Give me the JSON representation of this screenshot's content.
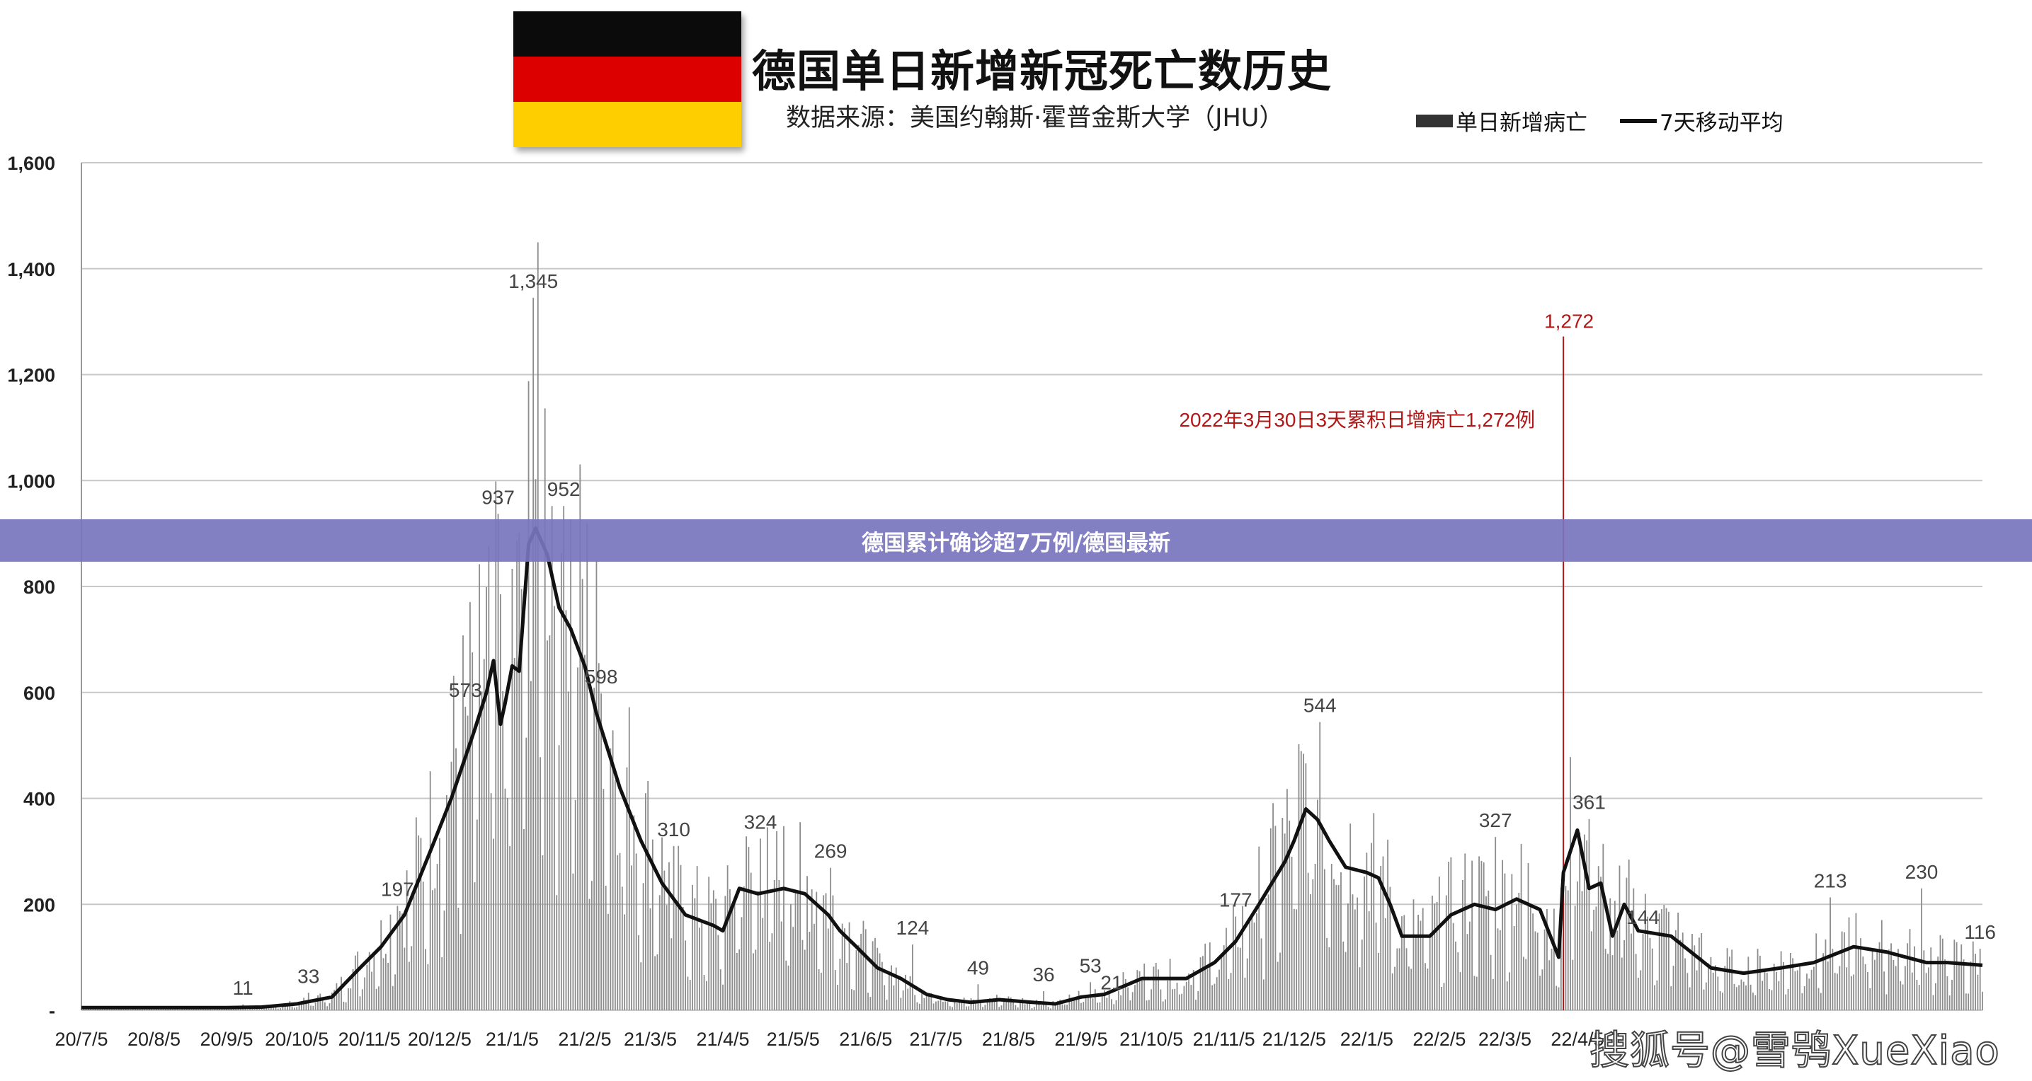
{
  "header": {
    "title": "德国单日新增新冠死亡数历史",
    "subtitle": "数据来源：美国约翰斯·霍普金斯大学（JHU）",
    "flag_colors": [
      "#0b0b0b",
      "#dd0000",
      "#ffce00"
    ]
  },
  "legend": {
    "bar_label": "单日新增病亡",
    "line_label": "7天移动平均"
  },
  "banner": {
    "text": "德国累计确诊超7万例/德国最新"
  },
  "watermark": {
    "text": "搜狐号@雪鸮XueXiao"
  },
  "colors": {
    "bar": "#8c8c8c",
    "line": "#111111",
    "annotation": "#b01818",
    "grid": "#c8c8c8",
    "banner": "#7874be"
  },
  "chart_data": {
    "type": "bar",
    "title": "德国单日新增新冠死亡数历史",
    "ylim": [
      0,
      1600
    ],
    "yticks": [
      0,
      200,
      400,
      600,
      800,
      1000,
      1200,
      1400,
      1600
    ],
    "ytick_labels": [
      "-",
      "200",
      "400",
      "600",
      "800",
      "1,000",
      "1,200",
      "1,400",
      "1,600"
    ],
    "x_start": "2020-07-05",
    "x_end": "2022-09-25",
    "xtick_labels": [
      "20/7/5",
      "20/8/5",
      "20/9/5",
      "20/10/5",
      "20/11/5",
      "20/12/5",
      "21/1/5",
      "21/2/5",
      "21/3/5",
      "21/4/5",
      "21/5/5",
      "21/6/5",
      "21/7/5",
      "21/8/5",
      "21/9/5",
      "21/10/5",
      "21/11/5",
      "21/12/5",
      "22/1/5",
      "22/2/5",
      "22/3/5",
      "22/4/5"
    ],
    "xtick_dates": [
      "2020-07-05",
      "2020-08-05",
      "2020-09-05",
      "2020-10-05",
      "2020-11-05",
      "2020-12-05",
      "2021-01-05",
      "2021-02-05",
      "2021-03-05",
      "2021-04-05",
      "2021-05-05",
      "2021-06-05",
      "2021-07-05",
      "2021-08-05",
      "2021-09-05",
      "2021-10-05",
      "2021-11-05",
      "2021-12-05",
      "2022-01-05",
      "2022-02-05",
      "2022-03-05",
      "2022-04-05"
    ],
    "grid": true,
    "legend_position": "top-right",
    "series": [
      {
        "name": "7天移动平均",
        "type": "line",
        "points": [
          [
            "2020-07-05",
            5
          ],
          [
            "2020-08-05",
            5
          ],
          [
            "2020-09-05",
            5
          ],
          [
            "2020-09-20",
            6
          ],
          [
            "2020-10-05",
            12
          ],
          [
            "2020-10-20",
            25
          ],
          [
            "2020-11-01",
            80
          ],
          [
            "2020-11-10",
            120
          ],
          [
            "2020-11-20",
            180
          ],
          [
            "2020-12-01",
            300
          ],
          [
            "2020-12-10",
            400
          ],
          [
            "2020-12-20",
            530
          ],
          [
            "2020-12-25",
            600
          ],
          [
            "2020-12-28",
            660
          ],
          [
            "2020-12-31",
            540
          ],
          [
            "2021-01-02",
            580
          ],
          [
            "2021-01-05",
            650
          ],
          [
            "2021-01-08",
            640
          ],
          [
            "2021-01-12",
            880
          ],
          [
            "2021-01-15",
            910
          ],
          [
            "2021-01-20",
            860
          ],
          [
            "2021-01-25",
            760
          ],
          [
            "2021-01-30",
            720
          ],
          [
            "2021-02-05",
            650
          ],
          [
            "2021-02-10",
            560
          ],
          [
            "2021-02-20",
            420
          ],
          [
            "2021-03-01",
            320
          ],
          [
            "2021-03-10",
            240
          ],
          [
            "2021-03-20",
            180
          ],
          [
            "2021-04-01",
            160
          ],
          [
            "2021-04-05",
            150
          ],
          [
            "2021-04-12",
            230
          ],
          [
            "2021-04-20",
            220
          ],
          [
            "2021-05-01",
            230
          ],
          [
            "2021-05-10",
            220
          ],
          [
            "2021-05-20",
            180
          ],
          [
            "2021-05-25",
            150
          ],
          [
            "2021-06-01",
            120
          ],
          [
            "2021-06-10",
            80
          ],
          [
            "2021-06-20",
            60
          ],
          [
            "2021-07-01",
            30
          ],
          [
            "2021-07-10",
            20
          ],
          [
            "2021-07-20",
            15
          ],
          [
            "2021-08-01",
            20
          ],
          [
            "2021-08-15",
            15
          ],
          [
            "2021-08-25",
            12
          ],
          [
            "2021-09-05",
            25
          ],
          [
            "2021-09-15",
            30
          ],
          [
            "2021-10-01",
            60
          ],
          [
            "2021-10-10",
            60
          ],
          [
            "2021-10-20",
            60
          ],
          [
            "2021-11-01",
            90
          ],
          [
            "2021-11-10",
            130
          ],
          [
            "2021-11-20",
            200
          ],
          [
            "2021-12-01",
            280
          ],
          [
            "2021-12-05",
            320
          ],
          [
            "2021-12-10",
            380
          ],
          [
            "2021-12-15",
            360
          ],
          [
            "2021-12-20",
            320
          ],
          [
            "2021-12-27",
            270
          ],
          [
            "2022-01-05",
            260
          ],
          [
            "2022-01-10",
            250
          ],
          [
            "2022-01-15",
            200
          ],
          [
            "2022-01-20",
            140
          ],
          [
            "2022-02-01",
            140
          ],
          [
            "2022-02-10",
            180
          ],
          [
            "2022-02-20",
            200
          ],
          [
            "2022-03-01",
            190
          ],
          [
            "2022-03-10",
            210
          ],
          [
            "2022-03-20",
            190
          ],
          [
            "2022-03-28",
            100
          ],
          [
            "2022-03-30",
            260
          ],
          [
            "2022-04-05",
            340
          ],
          [
            "2022-04-10",
            230
          ],
          [
            "2022-04-15",
            240
          ],
          [
            "2022-04-20",
            140
          ],
          [
            "2022-04-25",
            200
          ],
          [
            "2022-05-01",
            150
          ],
          [
            "2022-05-15",
            140
          ],
          [
            "2022-06-01",
            80
          ],
          [
            "2022-06-15",
            70
          ],
          [
            "2022-07-01",
            80
          ],
          [
            "2022-07-15",
            90
          ],
          [
            "2022-08-01",
            120
          ],
          [
            "2022-08-15",
            110
          ],
          [
            "2022-09-01",
            90
          ],
          [
            "2022-09-10",
            90
          ],
          [
            "2022-09-25",
            85
          ]
        ]
      }
    ],
    "data_labels": [
      {
        "date": "2020-09-12",
        "value": 11,
        "label": "11"
      },
      {
        "date": "2020-10-10",
        "value": 33,
        "label": "33"
      },
      {
        "date": "2020-11-17",
        "value": 197,
        "label": "197"
      },
      {
        "date": "2020-12-16",
        "value": 573,
        "label": "573"
      },
      {
        "date": "2020-12-30",
        "value": 937,
        "label": "937"
      },
      {
        "date": "2021-01-14",
        "value": 1345,
        "label": "1,345"
      },
      {
        "date": "2021-01-27",
        "value": 952,
        "label": "952"
      },
      {
        "date": "2021-02-12",
        "value": 598,
        "label": "598"
      },
      {
        "date": "2021-03-15",
        "value": 310,
        "label": "310"
      },
      {
        "date": "2021-04-21",
        "value": 324,
        "label": "324"
      },
      {
        "date": "2021-05-21",
        "value": 269,
        "label": "269"
      },
      {
        "date": "2021-06-25",
        "value": 124,
        "label": "124"
      },
      {
        "date": "2021-07-23",
        "value": 49,
        "label": "49"
      },
      {
        "date": "2021-08-20",
        "value": 36,
        "label": "36"
      },
      {
        "date": "2021-09-09",
        "value": 53,
        "label": "53"
      },
      {
        "date": "2021-09-18",
        "value": 21,
        "label": "21"
      },
      {
        "date": "2021-11-10",
        "value": 177,
        "label": "177"
      },
      {
        "date": "2021-12-16",
        "value": 544,
        "label": "544"
      },
      {
        "date": "2022-03-01",
        "value": 327,
        "label": "327"
      },
      {
        "date": "2022-04-10",
        "value": 361,
        "label": "361"
      },
      {
        "date": "2022-05-03",
        "value": 144,
        "label": "144"
      },
      {
        "date": "2022-07-22",
        "value": 213,
        "label": "213"
      },
      {
        "date": "2022-08-30",
        "value": 230,
        "label": "230"
      },
      {
        "date": "2022-09-24",
        "value": 116,
        "label": "116"
      }
    ],
    "annotations": [
      {
        "date": "2022-03-30",
        "value": 1272,
        "label": "1,272",
        "note": "2022年3月30日3天累积日增病亡1,272例"
      }
    ]
  }
}
